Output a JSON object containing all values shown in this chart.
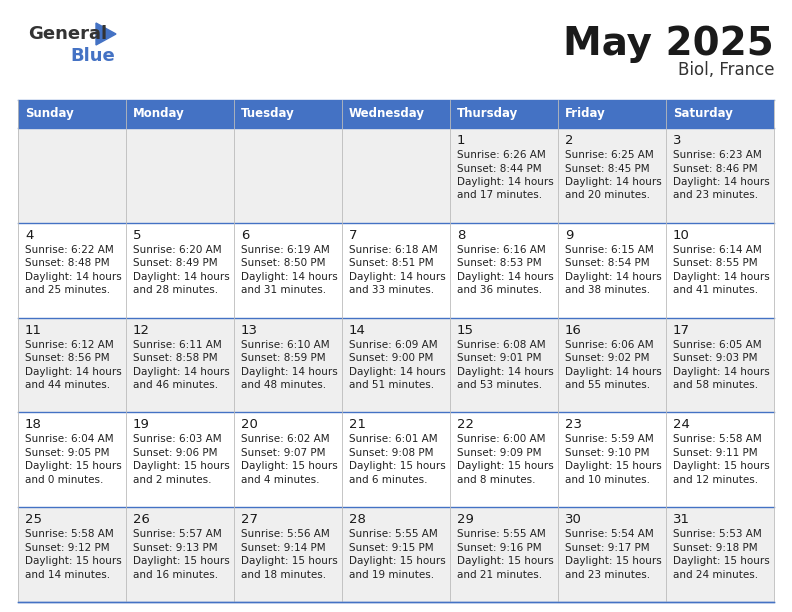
{
  "title": "May 2025",
  "subtitle": "Biol, France",
  "header_color": "#4472C4",
  "header_text_color": "#FFFFFF",
  "days_of_week": [
    "Sunday",
    "Monday",
    "Tuesday",
    "Wednesday",
    "Thursday",
    "Friday",
    "Saturday"
  ],
  "background_color": "#FFFFFF",
  "row_colors": [
    "#EFEFEF",
    "#FFFFFF",
    "#EFEFEF",
    "#FFFFFF",
    "#EFEFEF"
  ],
  "border_color": "#4472C4",
  "cell_text_color": "#222222",
  "logo_general_color": "#333333",
  "logo_blue_color": "#4472C4",
  "logo_triangle_color": "#4472C4",
  "calendar": [
    [
      {
        "day": "",
        "sunrise": "",
        "sunset": "",
        "daylight": ""
      },
      {
        "day": "",
        "sunrise": "",
        "sunset": "",
        "daylight": ""
      },
      {
        "day": "",
        "sunrise": "",
        "sunset": "",
        "daylight": ""
      },
      {
        "day": "",
        "sunrise": "",
        "sunset": "",
        "daylight": ""
      },
      {
        "day": "1",
        "sunrise": "6:26 AM",
        "sunset": "8:44 PM",
        "daylight": "14 hours",
        "daylight2": "and 17 minutes."
      },
      {
        "day": "2",
        "sunrise": "6:25 AM",
        "sunset": "8:45 PM",
        "daylight": "14 hours",
        "daylight2": "and 20 minutes."
      },
      {
        "day": "3",
        "sunrise": "6:23 AM",
        "sunset": "8:46 PM",
        "daylight": "14 hours",
        "daylight2": "and 23 minutes."
      }
    ],
    [
      {
        "day": "4",
        "sunrise": "6:22 AM",
        "sunset": "8:48 PM",
        "daylight": "14 hours",
        "daylight2": "and 25 minutes."
      },
      {
        "day": "5",
        "sunrise": "6:20 AM",
        "sunset": "8:49 PM",
        "daylight": "14 hours",
        "daylight2": "and 28 minutes."
      },
      {
        "day": "6",
        "sunrise": "6:19 AM",
        "sunset": "8:50 PM",
        "daylight": "14 hours",
        "daylight2": "and 31 minutes."
      },
      {
        "day": "7",
        "sunrise": "6:18 AM",
        "sunset": "8:51 PM",
        "daylight": "14 hours",
        "daylight2": "and 33 minutes."
      },
      {
        "day": "8",
        "sunrise": "6:16 AM",
        "sunset": "8:53 PM",
        "daylight": "14 hours",
        "daylight2": "and 36 minutes."
      },
      {
        "day": "9",
        "sunrise": "6:15 AM",
        "sunset": "8:54 PM",
        "daylight": "14 hours",
        "daylight2": "and 38 minutes."
      },
      {
        "day": "10",
        "sunrise": "6:14 AM",
        "sunset": "8:55 PM",
        "daylight": "14 hours",
        "daylight2": "and 41 minutes."
      }
    ],
    [
      {
        "day": "11",
        "sunrise": "6:12 AM",
        "sunset": "8:56 PM",
        "daylight": "14 hours",
        "daylight2": "and 44 minutes."
      },
      {
        "day": "12",
        "sunrise": "6:11 AM",
        "sunset": "8:58 PM",
        "daylight": "14 hours",
        "daylight2": "and 46 minutes."
      },
      {
        "day": "13",
        "sunrise": "6:10 AM",
        "sunset": "8:59 PM",
        "daylight": "14 hours",
        "daylight2": "and 48 minutes."
      },
      {
        "day": "14",
        "sunrise": "6:09 AM",
        "sunset": "9:00 PM",
        "daylight": "14 hours",
        "daylight2": "and 51 minutes."
      },
      {
        "day": "15",
        "sunrise": "6:08 AM",
        "sunset": "9:01 PM",
        "daylight": "14 hours",
        "daylight2": "and 53 minutes."
      },
      {
        "day": "16",
        "sunrise": "6:06 AM",
        "sunset": "9:02 PM",
        "daylight": "14 hours",
        "daylight2": "and 55 minutes."
      },
      {
        "day": "17",
        "sunrise": "6:05 AM",
        "sunset": "9:03 PM",
        "daylight": "14 hours",
        "daylight2": "and 58 minutes."
      }
    ],
    [
      {
        "day": "18",
        "sunrise": "6:04 AM",
        "sunset": "9:05 PM",
        "daylight": "15 hours",
        "daylight2": "and 0 minutes."
      },
      {
        "day": "19",
        "sunrise": "6:03 AM",
        "sunset": "9:06 PM",
        "daylight": "15 hours",
        "daylight2": "and 2 minutes."
      },
      {
        "day": "20",
        "sunrise": "6:02 AM",
        "sunset": "9:07 PM",
        "daylight": "15 hours",
        "daylight2": "and 4 minutes."
      },
      {
        "day": "21",
        "sunrise": "6:01 AM",
        "sunset": "9:08 PM",
        "daylight": "15 hours",
        "daylight2": "and 6 minutes."
      },
      {
        "day": "22",
        "sunrise": "6:00 AM",
        "sunset": "9:09 PM",
        "daylight": "15 hours",
        "daylight2": "and 8 minutes."
      },
      {
        "day": "23",
        "sunrise": "5:59 AM",
        "sunset": "9:10 PM",
        "daylight": "15 hours",
        "daylight2": "and 10 minutes."
      },
      {
        "day": "24",
        "sunrise": "5:58 AM",
        "sunset": "9:11 PM",
        "daylight": "15 hours",
        "daylight2": "and 12 minutes."
      }
    ],
    [
      {
        "day": "25",
        "sunrise": "5:58 AM",
        "sunset": "9:12 PM",
        "daylight": "15 hours",
        "daylight2": "and 14 minutes."
      },
      {
        "day": "26",
        "sunrise": "5:57 AM",
        "sunset": "9:13 PM",
        "daylight": "15 hours",
        "daylight2": "and 16 minutes."
      },
      {
        "day": "27",
        "sunrise": "5:56 AM",
        "sunset": "9:14 PM",
        "daylight": "15 hours",
        "daylight2": "and 18 minutes."
      },
      {
        "day": "28",
        "sunrise": "5:55 AM",
        "sunset": "9:15 PM",
        "daylight": "15 hours",
        "daylight2": "and 19 minutes."
      },
      {
        "day": "29",
        "sunrise": "5:55 AM",
        "sunset": "9:16 PM",
        "daylight": "15 hours",
        "daylight2": "and 21 minutes."
      },
      {
        "day": "30",
        "sunrise": "5:54 AM",
        "sunset": "9:17 PM",
        "daylight": "15 hours",
        "daylight2": "and 23 minutes."
      },
      {
        "day": "31",
        "sunrise": "5:53 AM",
        "sunset": "9:18 PM",
        "daylight": "15 hours",
        "daylight2": "and 24 minutes."
      }
    ]
  ]
}
